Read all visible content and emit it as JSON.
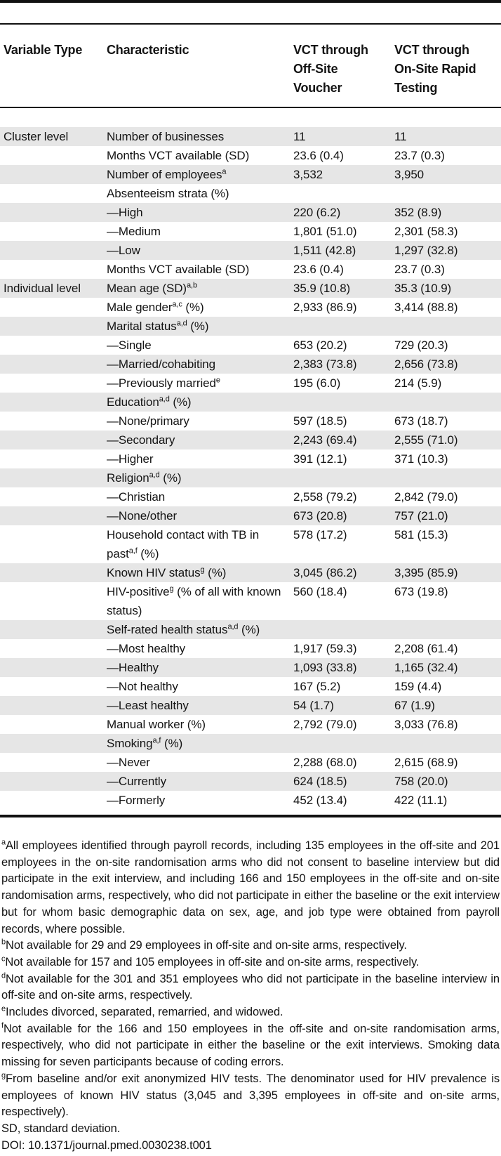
{
  "colors": {
    "row_shade": "#e6e6e6",
    "rule": "#111111",
    "text": "#141414",
    "background": "#ffffff"
  },
  "table": {
    "header": {
      "variable_type": "Variable Type",
      "characteristic": "Characteristic",
      "off_site": "VCT through Off-Site Voucher",
      "on_site": "VCT through On-Site Rapid Testing"
    },
    "rows": [
      {
        "variable_type": "Cluster level",
        "label": "Number of businesses",
        "off_site": "11",
        "on_site": "11"
      },
      {
        "variable_type": "",
        "label": "Months VCT available (SD)",
        "off_site": "23.6 (0.4)",
        "on_site": "23.7 (0.3)"
      },
      {
        "variable_type": "",
        "label": "Number of employees",
        "sup": "a",
        "off_site": "3,532",
        "on_site": "3,950"
      },
      {
        "variable_type": "",
        "label": "Absenteeism strata (%)",
        "off_site": "",
        "on_site": ""
      },
      {
        "variable_type": "",
        "label": "—High",
        "off_site": "220 (6.2)",
        "on_site": "352 (8.9)"
      },
      {
        "variable_type": "",
        "label": "—Medium",
        "off_site": "1,801 (51.0)",
        "on_site": "2,301 (58.3)"
      },
      {
        "variable_type": "",
        "label": "—Low",
        "off_site": "1,511 (42.8)",
        "on_site": "1,297 (32.8)"
      },
      {
        "variable_type": "",
        "label": "Months VCT available (SD)",
        "off_site": "23.6 (0.4)",
        "on_site": "23.7 (0.3)"
      },
      {
        "variable_type": "Individual level",
        "label": "Mean age (SD)",
        "sup": "a,b",
        "off_site": "35.9 (10.8)",
        "on_site": "35.3 (10.9)"
      },
      {
        "variable_type": "",
        "label": "Male gender",
        "sup": "a,c",
        "suffix": " (%)",
        "off_site": "2,933 (86.9)",
        "on_site": "3,414 (88.8)"
      },
      {
        "variable_type": "",
        "label": "Marital status",
        "sup": "a,d",
        "suffix": " (%)",
        "off_site": "",
        "on_site": ""
      },
      {
        "variable_type": "",
        "label": "—Single",
        "off_site": "653 (20.2)",
        "on_site": "729 (20.3)"
      },
      {
        "variable_type": "",
        "label": "—Married/cohabiting",
        "off_site": "2,383 (73.8)",
        "on_site": "2,656 (73.8)"
      },
      {
        "variable_type": "",
        "label": "—Previously married",
        "sup": "e",
        "off_site": "195 (6.0)",
        "on_site": "214 (5.9)"
      },
      {
        "variable_type": "",
        "label": "Education",
        "sup": "a,d",
        "suffix": " (%)",
        "off_site": "",
        "on_site": ""
      },
      {
        "variable_type": "",
        "label": "—None/primary",
        "off_site": "597 (18.5)",
        "on_site": "673 (18.7)"
      },
      {
        "variable_type": "",
        "label": "—Secondary",
        "off_site": "2,243 (69.4)",
        "on_site": "2,555 (71.0)"
      },
      {
        "variable_type": "",
        "label": "—Higher",
        "off_site": "391 (12.1)",
        "on_site": "371 (10.3)"
      },
      {
        "variable_type": "",
        "label": "Religion",
        "sup": "a,d",
        "suffix": " (%)",
        "off_site": "",
        "on_site": ""
      },
      {
        "variable_type": "",
        "label": "—Christian",
        "off_site": "2,558 (79.2)",
        "on_site": "2,842 (79.0)"
      },
      {
        "variable_type": "",
        "label": "—None/other",
        "off_site": "673 (20.8)",
        "on_site": "757 (21.0)"
      },
      {
        "variable_type": "",
        "label": "Household contact with TB in past",
        "sup": "a,f",
        "suffix": " (%)",
        "off_site": "578 (17.2)",
        "on_site": "581 (15.3)"
      },
      {
        "variable_type": "",
        "label": "Known HIV status",
        "sup": "g",
        "suffix": " (%)",
        "off_site": "3,045 (86.2)",
        "on_site": "3,395 (85.9)"
      },
      {
        "variable_type": "",
        "label": "HIV-positive",
        "sup": "g",
        "suffix": " (% of all with known status)",
        "off_site": "560 (18.4)",
        "on_site": "673 (19.8)"
      },
      {
        "variable_type": "",
        "label": "Self-rated health status",
        "sup": "a,d",
        "suffix": " (%)",
        "off_site": "",
        "on_site": ""
      },
      {
        "variable_type": "",
        "label": "—Most healthy",
        "off_site": "1,917 (59.3)",
        "on_site": "2,208 (61.4)"
      },
      {
        "variable_type": "",
        "label": "—Healthy",
        "off_site": "1,093 (33.8)",
        "on_site": "1,165 (32.4)"
      },
      {
        "variable_type": "",
        "label": "—Not healthy",
        "off_site": "167 (5.2)",
        "on_site": "159 (4.4)"
      },
      {
        "variable_type": "",
        "label": "—Least healthy",
        "off_site": "54 (1.7)",
        "on_site": "67 (1.9)"
      },
      {
        "variable_type": "",
        "label": "Manual worker (%)",
        "off_site": "2,792 (79.0)",
        "on_site": "3,033 (76.8)"
      },
      {
        "variable_type": "",
        "label": "Smoking",
        "sup": "a,f",
        "suffix": " (%)",
        "off_site": "",
        "on_site": ""
      },
      {
        "variable_type": "",
        "label": "—Never",
        "off_site": "2,288 (68.0)",
        "on_site": "2,615 (68.9)"
      },
      {
        "variable_type": "",
        "label": "—Currently",
        "off_site": "624 (18.5)",
        "on_site": "758 (20.0)"
      },
      {
        "variable_type": "",
        "label": "—Formerly",
        "off_site": "452 (13.4)",
        "on_site": "422 (11.1)"
      }
    ]
  },
  "footnotes": [
    {
      "marker": "a",
      "text": "All employees identified through payroll records, including 135 employees in the off-site and 201 employees in the on-site randomisation arms who did not consent to baseline interview but did participate in the exit interview, and including 166 and 150 employees in the off-site and on-site randomisation arms, respectively, who did not participate in either the baseline or the exit interview but for whom basic demographic data on sex, age, and job type were obtained from payroll records, where possible."
    },
    {
      "marker": "b",
      "text": "Not available for 29 and 29 employees in off-site and on-site arms, respectively."
    },
    {
      "marker": "c",
      "text": "Not available for 157 and 105 employees in off-site and on-site arms, respectively."
    },
    {
      "marker": "d",
      "text": "Not available for the 301 and 351 employees who did not participate in the baseline interview in off-site and on-site arms, respectively."
    },
    {
      "marker": "e",
      "text": "Includes divorced, separated, remarried, and widowed."
    },
    {
      "marker": "f",
      "text": "Not available for the 166 and 150 employees in the off-site and on-site randomisation arms, respectively, who did not participate in either the baseline or the exit interviews. Smoking data missing for seven participants because of coding errors."
    },
    {
      "marker": "g",
      "text": "From baseline and/or exit anonymized HIV tests. The denominator used for HIV prevalence is employees of known HIV status (3,045 and 3,395 employees in off-site and on-site arms, respectively)."
    },
    {
      "marker": "",
      "text": "SD, standard deviation."
    },
    {
      "marker": "",
      "text": "DOI: 10.1371/journal.pmed.0030238.t001"
    }
  ]
}
